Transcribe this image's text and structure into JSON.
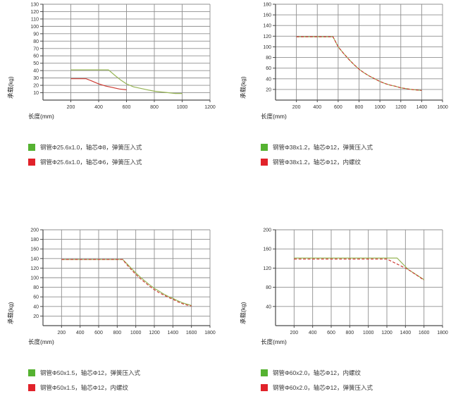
{
  "page": {
    "background": "#ffffff"
  },
  "theme": {
    "grid_color": "#8f8f8f",
    "axis_color": "#4a4a4a",
    "tick_text_color": "#333333",
    "axis_label_color": "#222222",
    "legend_text_color": "#3a3a3a",
    "green_line": "#96b455",
    "red_line": "#cc3b33",
    "green_swatch": "#55b231",
    "red_swatch": "#e1222a"
  },
  "chart_data": [
    {
      "type": "line",
      "xlabel": "长度(mm)",
      "ylabel": "承载(kg)",
      "xlim": [
        0,
        1200
      ],
      "xstep": 200,
      "ylim": [
        0,
        130
      ],
      "ystep": 10,
      "grid": true,
      "legend_position": "below",
      "series": [
        {
          "name": "钢管Φ25.6x1.0，轴芯Φ8，弹簧压入式",
          "color": "#96b455",
          "swatch": "#55b231",
          "dash": false,
          "points": [
            [
              200,
              41
            ],
            [
              470,
              41
            ],
            [
              520,
              33
            ],
            [
              560,
              27
            ],
            [
              600,
              22
            ],
            [
              650,
              18
            ],
            [
              700,
              16
            ],
            [
              750,
              14
            ],
            [
              800,
              12
            ],
            [
              850,
              11
            ],
            [
              900,
              10
            ],
            [
              950,
              9
            ],
            [
              1000,
              9
            ]
          ]
        },
        {
          "name": "钢管Φ25.6x1.0，轴芯Φ6，弹簧压入式",
          "color": "#cc3b33",
          "swatch": "#e1222a",
          "dash": false,
          "points": [
            [
              200,
              29
            ],
            [
              310,
              29
            ],
            [
              350,
              26
            ],
            [
              400,
              22
            ],
            [
              450,
              19
            ],
            [
              500,
              17
            ],
            [
              550,
              15
            ],
            [
              600,
              14
            ]
          ]
        }
      ]
    },
    {
      "type": "line",
      "xlabel": "长度(mm)",
      "ylabel": "承载(kg)",
      "xlim": [
        0,
        1600
      ],
      "xstep": 200,
      "ylim": [
        0,
        180
      ],
      "ystep": 20,
      "grid": true,
      "legend_position": "below",
      "series": [
        {
          "name": "钢管Φ38x1.2，轴芯Φ12，弹簧压入式",
          "color": "#96b455",
          "swatch": "#55b231",
          "dash": false,
          "points": [
            [
              200,
              119
            ],
            [
              550,
              119
            ],
            [
              600,
              100
            ],
            [
              650,
              88
            ],
            [
              700,
              77
            ],
            [
              750,
              67
            ],
            [
              800,
              58
            ],
            [
              850,
              51
            ],
            [
              900,
              45
            ],
            [
              950,
              40
            ],
            [
              1000,
              35
            ],
            [
              1050,
              31
            ],
            [
              1100,
              28
            ],
            [
              1150,
              26
            ],
            [
              1200,
              23
            ],
            [
              1300,
              20
            ],
            [
              1400,
              18
            ]
          ]
        },
        {
          "name": "钢管Φ38x1.2，轴芯Φ12，内螺纹",
          "color": "#cc3b33",
          "swatch": "#e1222a",
          "dash": true,
          "points": [
            [
              200,
              119
            ],
            [
              550,
              119
            ],
            [
              600,
              100
            ],
            [
              650,
              88
            ],
            [
              700,
              77
            ],
            [
              750,
              67
            ],
            [
              800,
              58
            ],
            [
              850,
              51
            ],
            [
              900,
              45
            ],
            [
              950,
              40
            ],
            [
              1000,
              35
            ],
            [
              1050,
              31
            ],
            [
              1100,
              28
            ],
            [
              1150,
              26
            ],
            [
              1200,
              23
            ],
            [
              1300,
              20
            ],
            [
              1400,
              18
            ]
          ]
        }
      ]
    },
    {
      "type": "line",
      "xlabel": "长度(mm)",
      "ylabel": "承载(kg)",
      "xlim": [
        0,
        1800
      ],
      "xstep": 200,
      "ylim": [
        0,
        200
      ],
      "ystep": 20,
      "grid": true,
      "legend_position": "below",
      "series": [
        {
          "name": "钢管Φ50x1.5，轴芯Φ12，弹簧压入式",
          "color": "#96b455",
          "swatch": "#55b231",
          "dash": false,
          "points": [
            [
              200,
              138
            ],
            [
              860,
              138
            ],
            [
              900,
              130
            ],
            [
              950,
              120
            ],
            [
              1000,
              110
            ],
            [
              1050,
              101
            ],
            [
              1100,
              93
            ],
            [
              1150,
              85
            ],
            [
              1200,
              78
            ],
            [
              1250,
              72
            ],
            [
              1300,
              66
            ],
            [
              1350,
              61
            ],
            [
              1400,
              57
            ],
            [
              1450,
              52
            ],
            [
              1500,
              48
            ],
            [
              1550,
              45
            ],
            [
              1600,
              42
            ]
          ]
        },
        {
          "name": "钢管Φ50x1.5，轴芯Φ12，内螺纹",
          "color": "#cc3b33",
          "swatch": "#e1222a",
          "dash": true,
          "points": [
            [
              200,
              138
            ],
            [
              860,
              138
            ],
            [
              900,
              128
            ],
            [
              950,
              117
            ],
            [
              1000,
              107
            ],
            [
              1050,
              98
            ],
            [
              1100,
              90
            ],
            [
              1150,
              82
            ],
            [
              1200,
              75
            ],
            [
              1250,
              69
            ],
            [
              1300,
              64
            ],
            [
              1350,
              59
            ],
            [
              1400,
              55
            ],
            [
              1450,
              50
            ],
            [
              1500,
              46
            ],
            [
              1550,
              43
            ],
            [
              1600,
              41
            ]
          ]
        }
      ]
    },
    {
      "type": "line",
      "xlabel": "长度(mm)",
      "ylabel": "承载(kg)",
      "xlim": [
        0,
        1800
      ],
      "xstep": 200,
      "ylim": [
        0,
        200
      ],
      "ystep": 40,
      "grid": true,
      "legend_position": "below",
      "series": [
        {
          "name": "钢管Φ60x2.0，轴芯Φ12，内螺纹",
          "color": "#96b455",
          "swatch": "#55b231",
          "dash": false,
          "points": [
            [
              200,
              141
            ],
            [
              1310,
              141
            ],
            [
              1430,
              117
            ],
            [
              1600,
              96
            ]
          ]
        },
        {
          "name": "钢管Φ60x2.0，轴芯Φ12，弹簧压入式",
          "color": "#cc3b33",
          "swatch": "#e1222a",
          "dash": true,
          "points": [
            [
              200,
              139
            ],
            [
              1200,
              139
            ],
            [
              1430,
              117
            ],
            [
              1600,
              95
            ]
          ]
        }
      ]
    }
  ]
}
